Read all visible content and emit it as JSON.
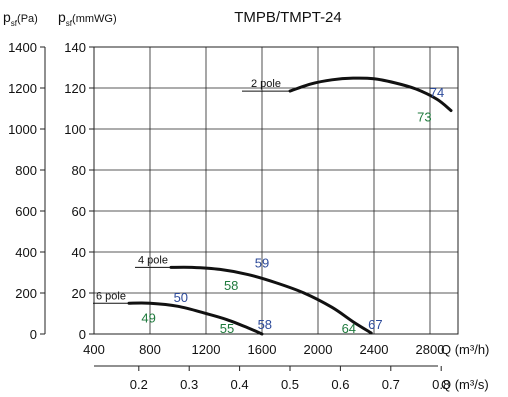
{
  "chart_data": {
    "type": "line",
    "title": "TMPB/TMPT-24",
    "yleft_label": {
      "main": "p",
      "sub": "sf",
      "unit": "(Pa)"
    },
    "yright_label": {
      "main": "p",
      "sub": "sf",
      "unit": "(mmWG)"
    },
    "xlabel_top": "Q (m³/h)",
    "xlabel_bottom": "Q (m³/s)",
    "xlim": [
      400,
      3000
    ],
    "ylim_pa": [
      0,
      1400
    ],
    "ylim_mmwg": [
      0,
      140
    ],
    "x_ticks": [
      "400",
      "800",
      "1200",
      "1600",
      "2000",
      "2400",
      "2800"
    ],
    "x2_ticks": [
      "0.2",
      "0.3",
      "0.4",
      "0.5",
      "0.6",
      "0.7",
      "0.8"
    ],
    "y_pa_ticks": [
      "0",
      "200",
      "400",
      "600",
      "800",
      "1000",
      "1200",
      "1400"
    ],
    "y_mmwg_ticks": [
      "0",
      "20",
      "40",
      "60",
      "80",
      "100",
      "120",
      "140"
    ],
    "grid": true,
    "colors": {
      "curve": "#111111",
      "label_blue": "#2c4a9a",
      "label_green": "#1f7a3d",
      "grid": "#222222"
    },
    "series": [
      {
        "name": "2 pole",
        "x": [
          1800,
          1950,
          2100,
          2250,
          2400,
          2550,
          2700,
          2850,
          2950
        ],
        "y": [
          1185,
          1220,
          1240,
          1248,
          1245,
          1225,
          1195,
          1145,
          1090
        ]
      },
      {
        "name": "4 pole",
        "x": [
          950,
          1100,
          1300,
          1500,
          1700,
          1900,
          2100,
          2250,
          2380
        ],
        "y": [
          325,
          325,
          315,
          290,
          250,
          200,
          130,
          60,
          5
        ]
      },
      {
        "name": "6 pole",
        "x": [
          650,
          800,
          1000,
          1200,
          1350,
          1500,
          1600
        ],
        "y": [
          150,
          150,
          135,
          100,
          70,
          30,
          0
        ]
      }
    ],
    "annotations": [
      {
        "text": "74",
        "x": 2850,
        "y": 1180,
        "color": "blue"
      },
      {
        "text": "73",
        "x": 2760,
        "y": 1060,
        "color": "green"
      },
      {
        "text": "59",
        "x": 1600,
        "y": 350,
        "color": "blue"
      },
      {
        "text": "58",
        "x": 1380,
        "y": 240,
        "color": "green"
      },
      {
        "text": "50",
        "x": 1020,
        "y": 180,
        "color": "blue"
      },
      {
        "text": "49",
        "x": 790,
        "y": 80,
        "color": "green"
      },
      {
        "text": "58",
        "x": 1620,
        "y": 50,
        "color": "blue"
      },
      {
        "text": "55",
        "x": 1350,
        "y": 30,
        "color": "green"
      },
      {
        "text": "67",
        "x": 2410,
        "y": 50,
        "color": "blue"
      },
      {
        "text": "64",
        "x": 2220,
        "y": 30,
        "color": "green"
      }
    ]
  }
}
